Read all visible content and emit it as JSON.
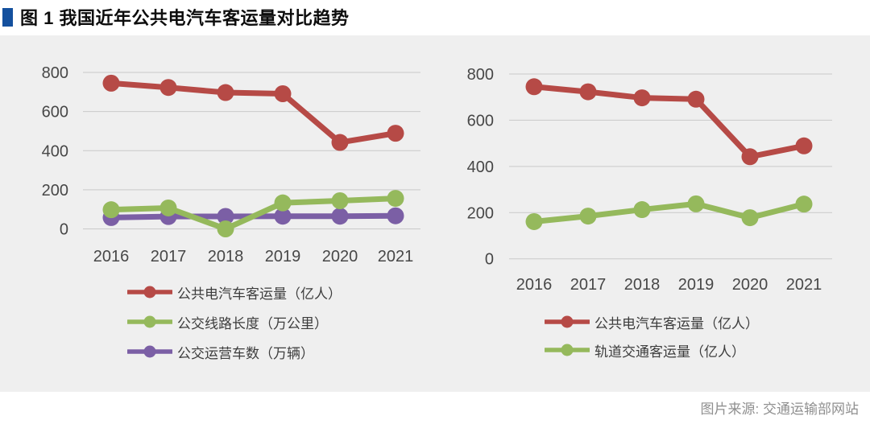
{
  "title": {
    "text": "图 1 我国近年公共电汽车客运量对比趋势"
  },
  "source_note": "图片来源: 交通运输部网站",
  "colors": {
    "title_marker": "#14509e",
    "panel_background": "#efefef",
    "gridline": "#c9c9c9",
    "red": "#b64a46",
    "green": "#95b95c",
    "purple": "#7b5fa5"
  },
  "chart_data": [
    {
      "type": "line",
      "title": "",
      "x": [
        "2016",
        "2017",
        "2018",
        "2019",
        "2020",
        "2021"
      ],
      "series": [
        {
          "name": "公共电汽车客运量（亿人）",
          "color": "#b64a46",
          "values": [
            745,
            723,
            697,
            691,
            442,
            489
          ]
        },
        {
          "name": "公交线路长度（万公里）",
          "color": "#95b95c",
          "values": [
            98,
            107,
            0,
            133,
            144,
            156
          ]
        },
        {
          "name": "公交运营车数（万辆）",
          "color": "#7b5fa5",
          "values": [
            58,
            63,
            64,
            65,
            65,
            67
          ]
        }
      ],
      "xlabel": "",
      "ylabel": "",
      "ylim": [
        0,
        800
      ],
      "yticks": [
        0,
        200,
        400,
        600,
        800
      ],
      "grid": true,
      "legend_position": "bottom"
    },
    {
      "type": "line",
      "title": "",
      "x": [
        "2016",
        "2017",
        "2018",
        "2019",
        "2020",
        "2021"
      ],
      "series": [
        {
          "name": "公共电汽车客运量（亿人）",
          "color": "#b64a46",
          "values": [
            745,
            723,
            697,
            691,
            442,
            489
          ]
        },
        {
          "name": "轨道交通客运量（亿人）",
          "color": "#95b95c",
          "values": [
            161,
            185,
            213,
            238,
            178,
            237
          ]
        }
      ],
      "xlabel": "",
      "ylabel": "",
      "ylim": [
        0,
        800
      ],
      "yticks": [
        0,
        200,
        400,
        600,
        800
      ],
      "grid": true,
      "legend_position": "bottom"
    }
  ]
}
